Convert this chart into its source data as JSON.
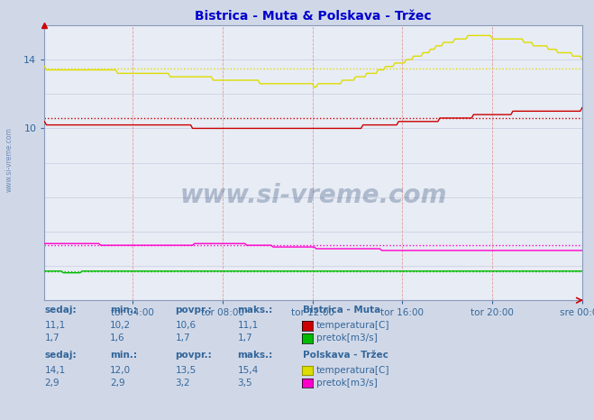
{
  "title": "Bistrica - Muta & Polskava - Tržec",
  "bg_color": "#d0d8e8",
  "plot_bg_color": "#e8ecf4",
  "title_color": "#0000cc",
  "tick_color": "#336699",
  "watermark": "www.si-vreme.com",
  "watermark_color": "#1a3a6a",
  "ylim": [
    0,
    16
  ],
  "xtick_labels": [
    "tor 04:00",
    "tor 08:00",
    "tor 12:00",
    "tor 16:00",
    "tor 20:00",
    "sre 00:00"
  ],
  "n_points": 288,
  "series": {
    "bistrica_temp": {
      "color": "#cc0000",
      "avg": 10.6,
      "min": 10.2,
      "max": 11.1,
      "current": 11.1
    },
    "bistrica_pretok": {
      "color": "#00bb00",
      "avg": 1.7,
      "min": 1.6,
      "max": 1.7,
      "current": 1.7
    },
    "polskava_temp": {
      "color": "#dddd00",
      "avg": 13.5,
      "min": 12.0,
      "max": 15.4,
      "current": 14.1
    },
    "polskava_pretok": {
      "color": "#ff00cc",
      "avg": 3.2,
      "min": 2.9,
      "max": 3.5,
      "current": 2.9
    }
  },
  "bistrica_header": [
    "sedaj:",
    "min.:",
    "povpr.:",
    "maks.:",
    "Bistrica - Muta"
  ],
  "bistrica_temp_vals": [
    "11,1",
    "10,2",
    "10,6",
    "11,1"
  ],
  "bistrica_pretok_vals": [
    "1,7",
    "1,6",
    "1,7",
    "1,7"
  ],
  "polskava_header": [
    "sedaj:",
    "min.:",
    "povpr.:",
    "maks.:",
    "Polskava - Tržec"
  ],
  "polskava_temp_vals": [
    "14,1",
    "12,0",
    "13,5",
    "15,4"
  ],
  "polskava_pretok_vals": [
    "2,9",
    "2,9",
    "3,2",
    "3,5"
  ],
  "temp_label": "temperatura[C]",
  "pretok_label": "pretok[m3/s]"
}
